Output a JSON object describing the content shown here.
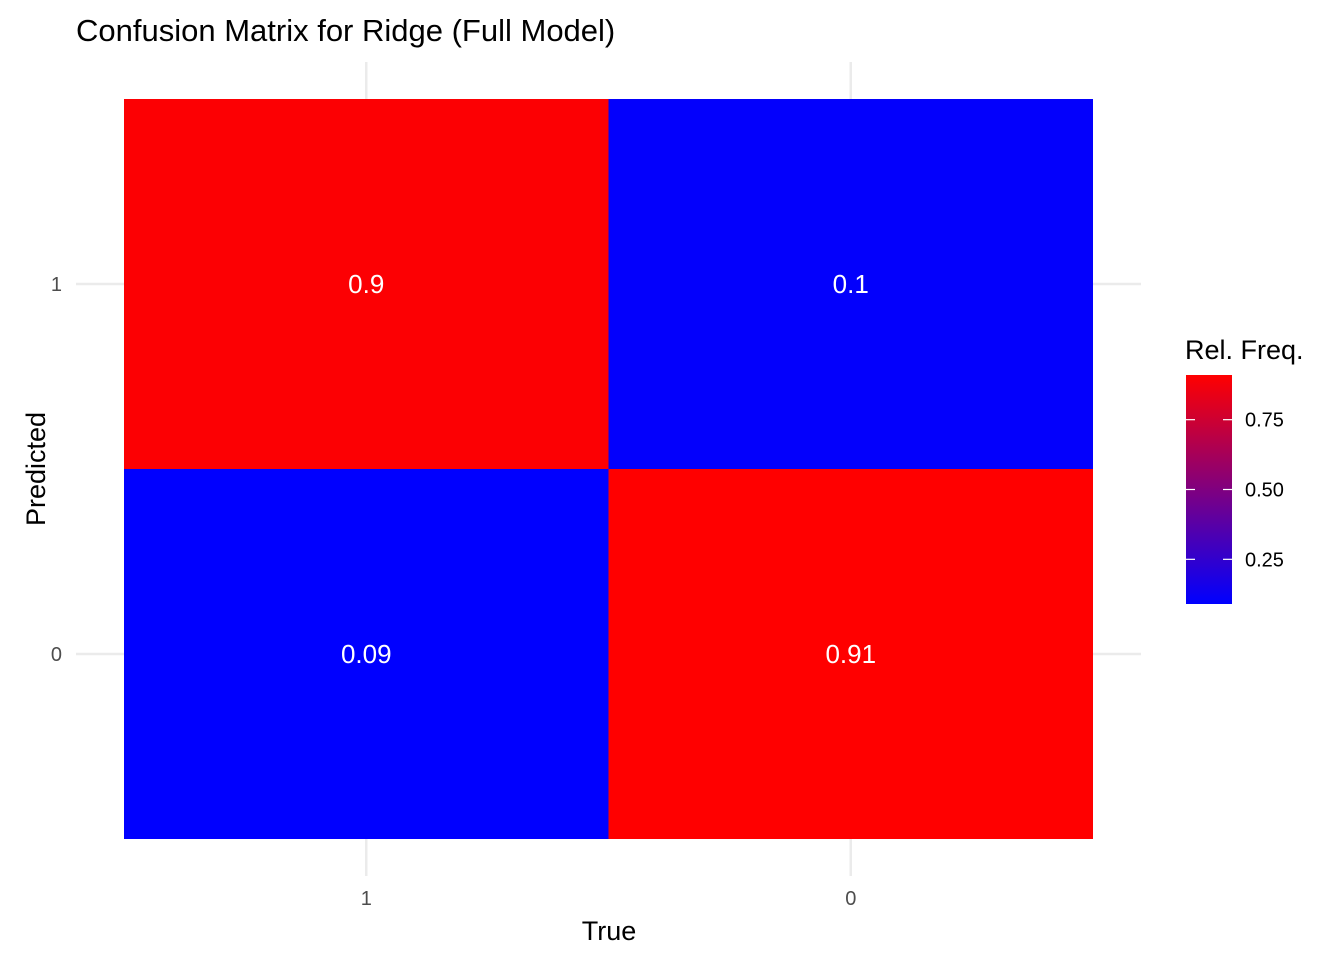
{
  "chart_data": {
    "type": "heatmap",
    "title": "Confusion Matrix for Ridge (Full Model)",
    "xlabel": "True",
    "ylabel": "Predicted",
    "x_categories": [
      "1",
      "0"
    ],
    "y_categories": [
      "1",
      "0"
    ],
    "cells": [
      {
        "x": "1",
        "y": "1",
        "value": 0.9,
        "label": "0.9"
      },
      {
        "x": "0",
        "y": "1",
        "value": 0.1,
        "label": "0.1"
      },
      {
        "x": "1",
        "y": "0",
        "value": 0.09,
        "label": "0.09"
      },
      {
        "x": "0",
        "y": "0",
        "value": 0.91,
        "label": "0.91"
      }
    ],
    "legend": {
      "title": "Rel. Freq.",
      "placement": "right",
      "range": [
        0.09,
        0.91
      ],
      "ticks": [
        {
          "value": 0.75,
          "label": "0.75"
        },
        {
          "value": 0.5,
          "label": "0.50"
        },
        {
          "value": 0.25,
          "label": "0.25"
        }
      ],
      "low_color": "#0000ff",
      "high_color": "#ff0000"
    },
    "grid": true,
    "colors": {
      "grid": "#ebebeb",
      "cell_text": "#ffffff",
      "tick_text": "#4d4d4d"
    }
  }
}
